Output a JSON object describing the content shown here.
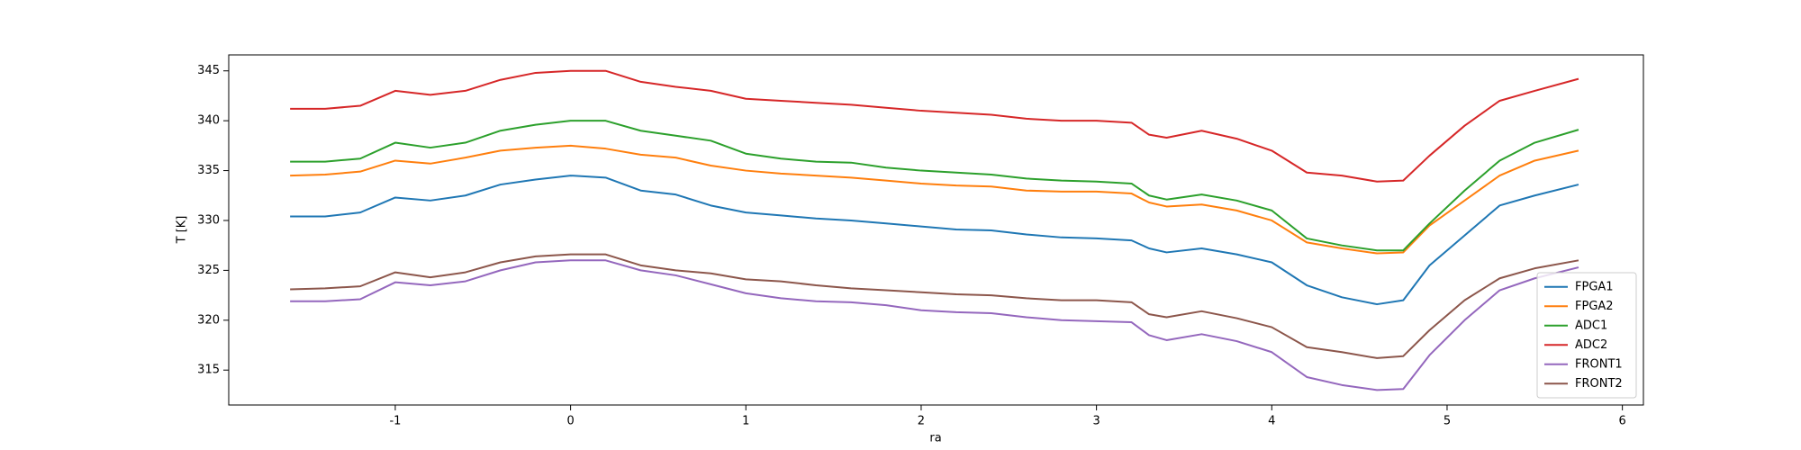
{
  "chart_data": {
    "type": "line",
    "xlabel": "ra",
    "ylabel": "T [K]",
    "x": [
      -1.6,
      -1.4,
      -1.2,
      -1.0,
      -0.8,
      -0.6,
      -0.4,
      -0.2,
      0,
      0.2,
      0.4,
      0.6,
      0.8,
      1.0,
      1.2,
      1.4,
      1.6,
      1.8,
      2.0,
      2.2,
      2.4,
      2.6,
      2.8,
      3.0,
      3.2,
      3.3,
      3.4,
      3.6,
      3.8,
      4.0,
      4.2,
      4.4,
      4.6,
      4.75,
      4.9,
      5.1,
      5.3,
      5.5,
      5.75
    ],
    "series": [
      {
        "name": "FPGA1",
        "color": "#1f77b4",
        "values": [
          330.4,
          330.4,
          330.8,
          332.3,
          332.0,
          332.5,
          333.6,
          334.1,
          334.5,
          334.3,
          333.0,
          332.6,
          331.5,
          330.8,
          330.5,
          330.2,
          330.0,
          329.7,
          329.4,
          329.1,
          329.0,
          328.6,
          328.3,
          328.2,
          328.0,
          327.2,
          326.8,
          327.2,
          326.6,
          325.8,
          323.5,
          322.3,
          321.6,
          322.0,
          325.5,
          328.5,
          331.5,
          332.5,
          333.6
        ]
      },
      {
        "name": "FPGA2",
        "color": "#ff7f0e",
        "values": [
          334.5,
          334.6,
          334.9,
          336.0,
          335.7,
          336.3,
          337.0,
          337.3,
          337.5,
          337.2,
          336.6,
          336.3,
          335.5,
          335.0,
          334.7,
          334.5,
          334.3,
          334.0,
          333.7,
          333.5,
          333.4,
          333.0,
          332.9,
          332.9,
          332.7,
          331.8,
          331.4,
          331.6,
          331.0,
          330.0,
          327.8,
          327.2,
          326.7,
          326.8,
          329.5,
          332.0,
          334.5,
          336.0,
          337.0
        ]
      },
      {
        "name": "ADC1",
        "color": "#2ca02c",
        "values": [
          335.9,
          335.9,
          336.2,
          337.8,
          337.3,
          337.8,
          339.0,
          339.6,
          340.0,
          340.0,
          339.0,
          338.5,
          338.0,
          336.7,
          336.2,
          335.9,
          335.8,
          335.3,
          335.0,
          334.8,
          334.6,
          334.2,
          334.0,
          333.9,
          333.7,
          332.5,
          332.1,
          332.6,
          332.0,
          331.0,
          328.2,
          327.5,
          327.0,
          327.0,
          329.7,
          333.0,
          336.0,
          337.8,
          339.1
        ]
      },
      {
        "name": "ADC2",
        "color": "#d62728",
        "values": [
          341.2,
          341.2,
          341.5,
          343.0,
          342.6,
          343.0,
          344.1,
          344.8,
          345.0,
          345.0,
          343.9,
          343.4,
          343.0,
          342.2,
          342.0,
          341.8,
          341.6,
          341.3,
          341.0,
          340.8,
          340.6,
          340.2,
          340.0,
          340.0,
          339.8,
          338.6,
          338.3,
          339.0,
          338.2,
          337.0,
          334.8,
          334.5,
          333.9,
          334.0,
          336.5,
          339.5,
          342.0,
          343.0,
          344.2
        ]
      },
      {
        "name": "FRONT1",
        "color": "#9467bd",
        "values": [
          321.9,
          321.9,
          322.1,
          323.8,
          323.5,
          323.9,
          325.0,
          325.8,
          326.0,
          326.0,
          325.0,
          324.5,
          323.6,
          322.7,
          322.2,
          321.9,
          321.8,
          321.5,
          321.0,
          320.8,
          320.7,
          320.3,
          320.0,
          319.9,
          319.8,
          318.5,
          318.0,
          318.6,
          317.9,
          316.8,
          314.3,
          313.5,
          313.0,
          313.1,
          316.5,
          320.0,
          323.0,
          324.2,
          325.3
        ]
      },
      {
        "name": "FRONT2",
        "color": "#8c564b",
        "values": [
          323.1,
          323.2,
          323.4,
          324.8,
          324.3,
          324.8,
          325.8,
          326.4,
          326.6,
          326.6,
          325.5,
          325.0,
          324.7,
          324.1,
          323.9,
          323.5,
          323.2,
          323.0,
          322.8,
          322.6,
          322.5,
          322.2,
          322.0,
          322.0,
          321.8,
          320.6,
          320.3,
          320.9,
          320.2,
          319.3,
          317.3,
          316.8,
          316.2,
          316.4,
          319.0,
          322.0,
          324.2,
          325.2,
          326.0
        ]
      }
    ],
    "xlim": [
      -1.95,
      6.12
    ],
    "xticks": [
      -1,
      0,
      1,
      2,
      3,
      4,
      5,
      6
    ],
    "ylim": [
      311.5,
      346.6
    ],
    "yticks": [
      315,
      320,
      325,
      330,
      335,
      340,
      345
    ],
    "legend": "lower right"
  }
}
